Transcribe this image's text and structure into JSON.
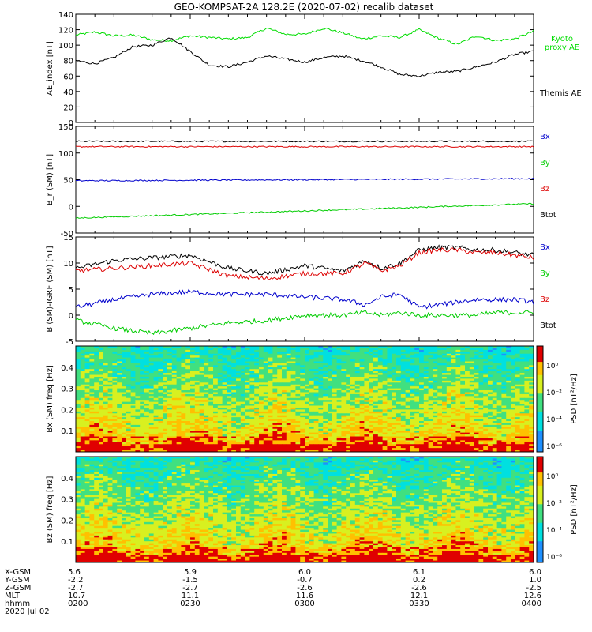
{
  "title": "GEO-KOMPSAT-2A 128.2E (2020-07-02) recalib dataset",
  "chart_data": [
    {
      "type": "line",
      "id": "ae",
      "ylabel": "AE_index [nT]",
      "ylim": [
        0,
        140
      ],
      "yticks": [
        0,
        20,
        40,
        60,
        80,
        100,
        120,
        140
      ],
      "legend": [
        "Kyoto proxy AE",
        "Themis AE"
      ],
      "series": [
        {
          "name": "Kyoto proxy AE",
          "color": "#00dd00",
          "x": [
            0,
            5,
            10,
            15,
            20,
            25,
            30,
            35,
            40,
            45,
            50,
            55,
            60,
            65,
            70,
            75,
            80,
            85,
            90,
            95,
            100,
            105,
            110,
            115,
            120
          ],
          "values": [
            113,
            117,
            112,
            113,
            107,
            106,
            112,
            110,
            108,
            110,
            122,
            114,
            114,
            122,
            116,
            108,
            112,
            110,
            120,
            109,
            101,
            112,
            106,
            108,
            118
          ]
        },
        {
          "name": "Themis AE",
          "color": "#000000",
          "x": [
            0,
            5,
            10,
            15,
            20,
            25,
            30,
            35,
            40,
            45,
            50,
            55,
            60,
            65,
            70,
            75,
            80,
            85,
            90,
            95,
            100,
            105,
            110,
            115,
            120
          ],
          "values": [
            80,
            76,
            84,
            98,
            100,
            110,
            92,
            74,
            72,
            78,
            86,
            82,
            78,
            84,
            86,
            80,
            72,
            62,
            60,
            65,
            66,
            72,
            78,
            88,
            92
          ]
        }
      ]
    },
    {
      "type": "line",
      "id": "bsm",
      "ylabel": "B_r (SM) [nT]",
      "ylim": [
        -50,
        150
      ],
      "yticks": [
        -50,
        0,
        50,
        100,
        150
      ],
      "legend": [
        "Bx",
        "By",
        "Bz",
        "Btot"
      ],
      "legend_colors": [
        "#0000cc",
        "#00cc00",
        "#dd0000",
        "#000000"
      ],
      "series": [
        {
          "name": "Btot",
          "color": "#000000",
          "x": [
            0,
            120
          ],
          "values": [
            122,
            122
          ]
        },
        {
          "name": "Bz",
          "color": "#dd0000",
          "x": [
            0,
            120
          ],
          "values": [
            112,
            112
          ]
        },
        {
          "name": "Bx",
          "color": "#0000cc",
          "x": [
            0,
            120
          ],
          "values": [
            48,
            52
          ]
        },
        {
          "name": "By",
          "color": "#00cc00",
          "x": [
            0,
            120
          ],
          "values": [
            -22,
            5
          ]
        }
      ]
    },
    {
      "type": "line",
      "id": "bgrf",
      "ylabel": "B (SM)-IGRF (SM) [nT]",
      "ylim": [
        -5,
        15
      ],
      "yticks": [
        -5,
        0,
        5,
        10,
        15
      ],
      "legend": [
        "Bx",
        "By",
        "Bz",
        "Btot"
      ],
      "legend_colors": [
        "#0000cc",
        "#00cc00",
        "#dd0000",
        "#000000"
      ],
      "series": [
        {
          "name": "Btot",
          "color": "#000000",
          "x": [
            0,
            10,
            20,
            30,
            40,
            50,
            60,
            70,
            76,
            80,
            85,
            90,
            95,
            100,
            105,
            110,
            115,
            120
          ],
          "values": [
            9,
            10.5,
            11,
            11.5,
            9,
            8,
            9.5,
            8.5,
            10.5,
            9,
            10,
            12.5,
            13,
            13,
            12.5,
            12.5,
            12,
            11.5
          ]
        },
        {
          "name": "Bz",
          "color": "#dd0000",
          "x": [
            0,
            10,
            20,
            30,
            40,
            50,
            60,
            70,
            76,
            80,
            85,
            90,
            95,
            100,
            105,
            110,
            115,
            120
          ],
          "values": [
            8.5,
            9,
            9.5,
            10,
            7.5,
            7,
            8,
            8,
            10,
            8.5,
            9.5,
            12,
            12.5,
            12.5,
            12,
            12,
            11.5,
            11
          ]
        },
        {
          "name": "Bx",
          "color": "#0000cc",
          "x": [
            0,
            10,
            20,
            30,
            40,
            50,
            60,
            70,
            76,
            80,
            85,
            90,
            95,
            100,
            105,
            110,
            115,
            120
          ],
          "values": [
            1.5,
            3,
            4,
            4.5,
            4,
            4,
            3.5,
            3,
            2,
            3.5,
            4,
            1.5,
            2,
            2.5,
            3,
            3,
            3,
            2.5
          ]
        },
        {
          "name": "By",
          "color": "#00cc00",
          "x": [
            0,
            10,
            20,
            30,
            40,
            50,
            60,
            70,
            76,
            80,
            85,
            90,
            95,
            100,
            105,
            110,
            115,
            120
          ],
          "values": [
            -1,
            -2.5,
            -3.5,
            -2.5,
            -1.5,
            -1,
            0,
            0,
            0.5,
            0,
            0.5,
            0,
            0,
            0,
            0,
            0.5,
            0.5,
            0.5
          ]
        }
      ]
    },
    {
      "type": "heatmap",
      "id": "bx_spec",
      "ylabel": "Bx (SM) freq [Hz]",
      "ylim": [
        0,
        0.5
      ],
      "yticks": [
        0.1,
        0.2,
        0.3,
        0.4
      ],
      "colorbar_label": "PSD [nT²/Hz]",
      "colorbar_ticks": [
        "10⁰",
        "10⁻²",
        "10⁻⁴",
        "10⁻⁶"
      ]
    },
    {
      "type": "heatmap",
      "id": "bz_spec",
      "ylabel": "Bz (SM) freq [Hz]",
      "ylim": [
        0,
        0.5
      ],
      "yticks": [
        0.1,
        0.2,
        0.3,
        0.4
      ],
      "colorbar_label": "PSD [nT²/Hz]",
      "colorbar_ticks": [
        "10⁰",
        "10⁻²",
        "10⁻⁴",
        "10⁻⁶"
      ]
    }
  ],
  "xaxis": {
    "row_labels": [
      "X-GSM",
      "Y-GSM",
      "Z-GSM",
      "MLT",
      "hhmm"
    ],
    "date": "2020 Jul 02",
    "columns": [
      {
        "x": 0,
        "values": [
          "5.6",
          "-2.2",
          "-2.7",
          "10.7",
          "0200"
        ]
      },
      {
        "x": 30,
        "values": [
          "5.9",
          "-1.5",
          "-2.7",
          "11.1",
          "0230"
        ]
      },
      {
        "x": 60,
        "values": [
          "6.0",
          "-0.7",
          "-2.6",
          "11.6",
          "0300"
        ]
      },
      {
        "x": 90,
        "values": [
          "6.1",
          "0.2",
          "-2.6",
          "12.1",
          "0330"
        ]
      },
      {
        "x": 120,
        "values": [
          "6.0",
          "1.0",
          "-2.5",
          "12.6",
          "0400"
        ]
      }
    ]
  }
}
